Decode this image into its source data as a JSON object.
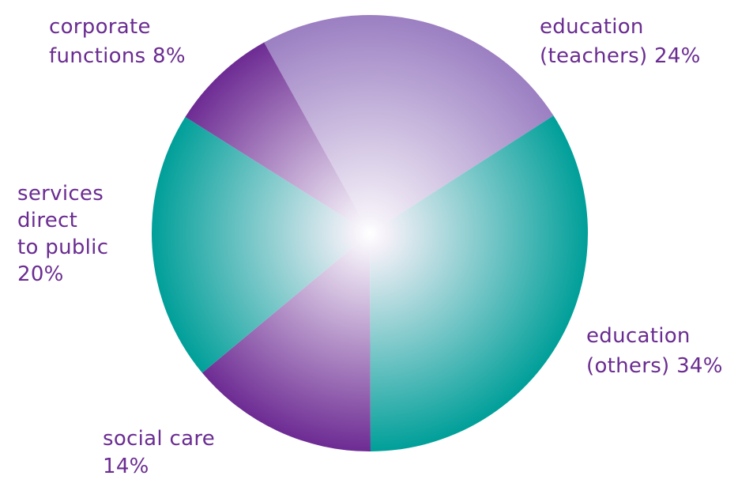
{
  "chart_data": {
    "type": "pie",
    "title": "",
    "slices": [
      {
        "label_lines": [
          "education",
          "(teachers) 24%"
        ],
        "category": "education (teachers)",
        "value": 24,
        "color": "#9b7fc2"
      },
      {
        "label_lines": [
          "education",
          "(others) 34%"
        ],
        "category": "education (others)",
        "value": 34,
        "color": "#009f99"
      },
      {
        "label_lines": [
          "social care",
          "14%"
        ],
        "category": "social care",
        "value": 14,
        "color": "#6d2b93"
      },
      {
        "label_lines": [
          "services",
          "direct",
          "to public",
          "20%"
        ],
        "category": "services direct to public",
        "value": 20,
        "color": "#009f99"
      },
      {
        "label_lines": [
          "corporate",
          "functions 8%"
        ],
        "category": "corporate functions",
        "value": 8,
        "color": "#6d2b93"
      }
    ],
    "label_color": "#6a2c91",
    "legend": "none"
  }
}
